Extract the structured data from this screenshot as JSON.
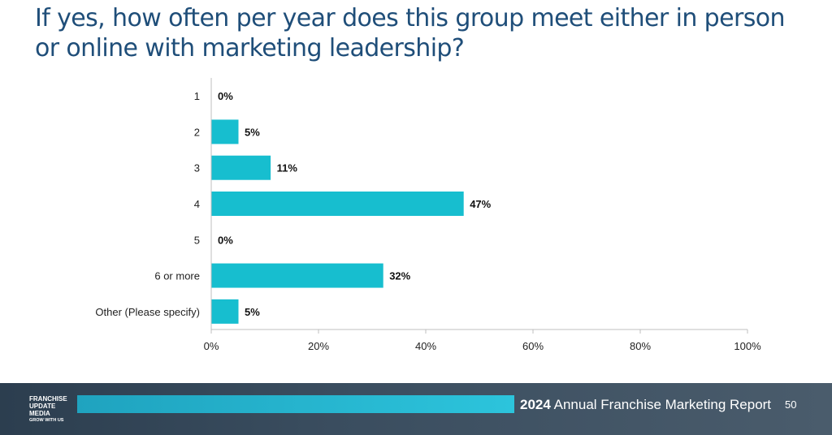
{
  "slide": {
    "title": "If yes, how often per year does this group meet either in person or online with marketing leadership?"
  },
  "chart_data": {
    "type": "bar",
    "orientation": "horizontal",
    "title": "",
    "xlabel": "",
    "ylabel": "",
    "categories": [
      "1",
      "2",
      "3",
      "4",
      "5",
      "6 or more",
      "Other (Please specify)"
    ],
    "values": [
      0,
      5,
      11,
      47,
      0,
      32,
      5
    ],
    "value_labels": [
      "0%",
      "5%",
      "11%",
      "47%",
      "0%",
      "32%",
      "5%"
    ],
    "xlim": [
      0,
      100
    ],
    "x_ticks": [
      0,
      20,
      40,
      60,
      80,
      100
    ],
    "x_tick_labels": [
      "0%",
      "20%",
      "40%",
      "60%",
      "80%",
      "100%"
    ],
    "grid": false,
    "legend": "none",
    "bar_color": "#17becf"
  },
  "footer": {
    "logo_lines": [
      "FRANCHISE",
      "UPDATE",
      "MEDIA"
    ],
    "logo_tagline": "GROW WITH US",
    "report_year": "2024",
    "report_title": "Annual Franchise Marketing Report",
    "page_number": "50"
  }
}
